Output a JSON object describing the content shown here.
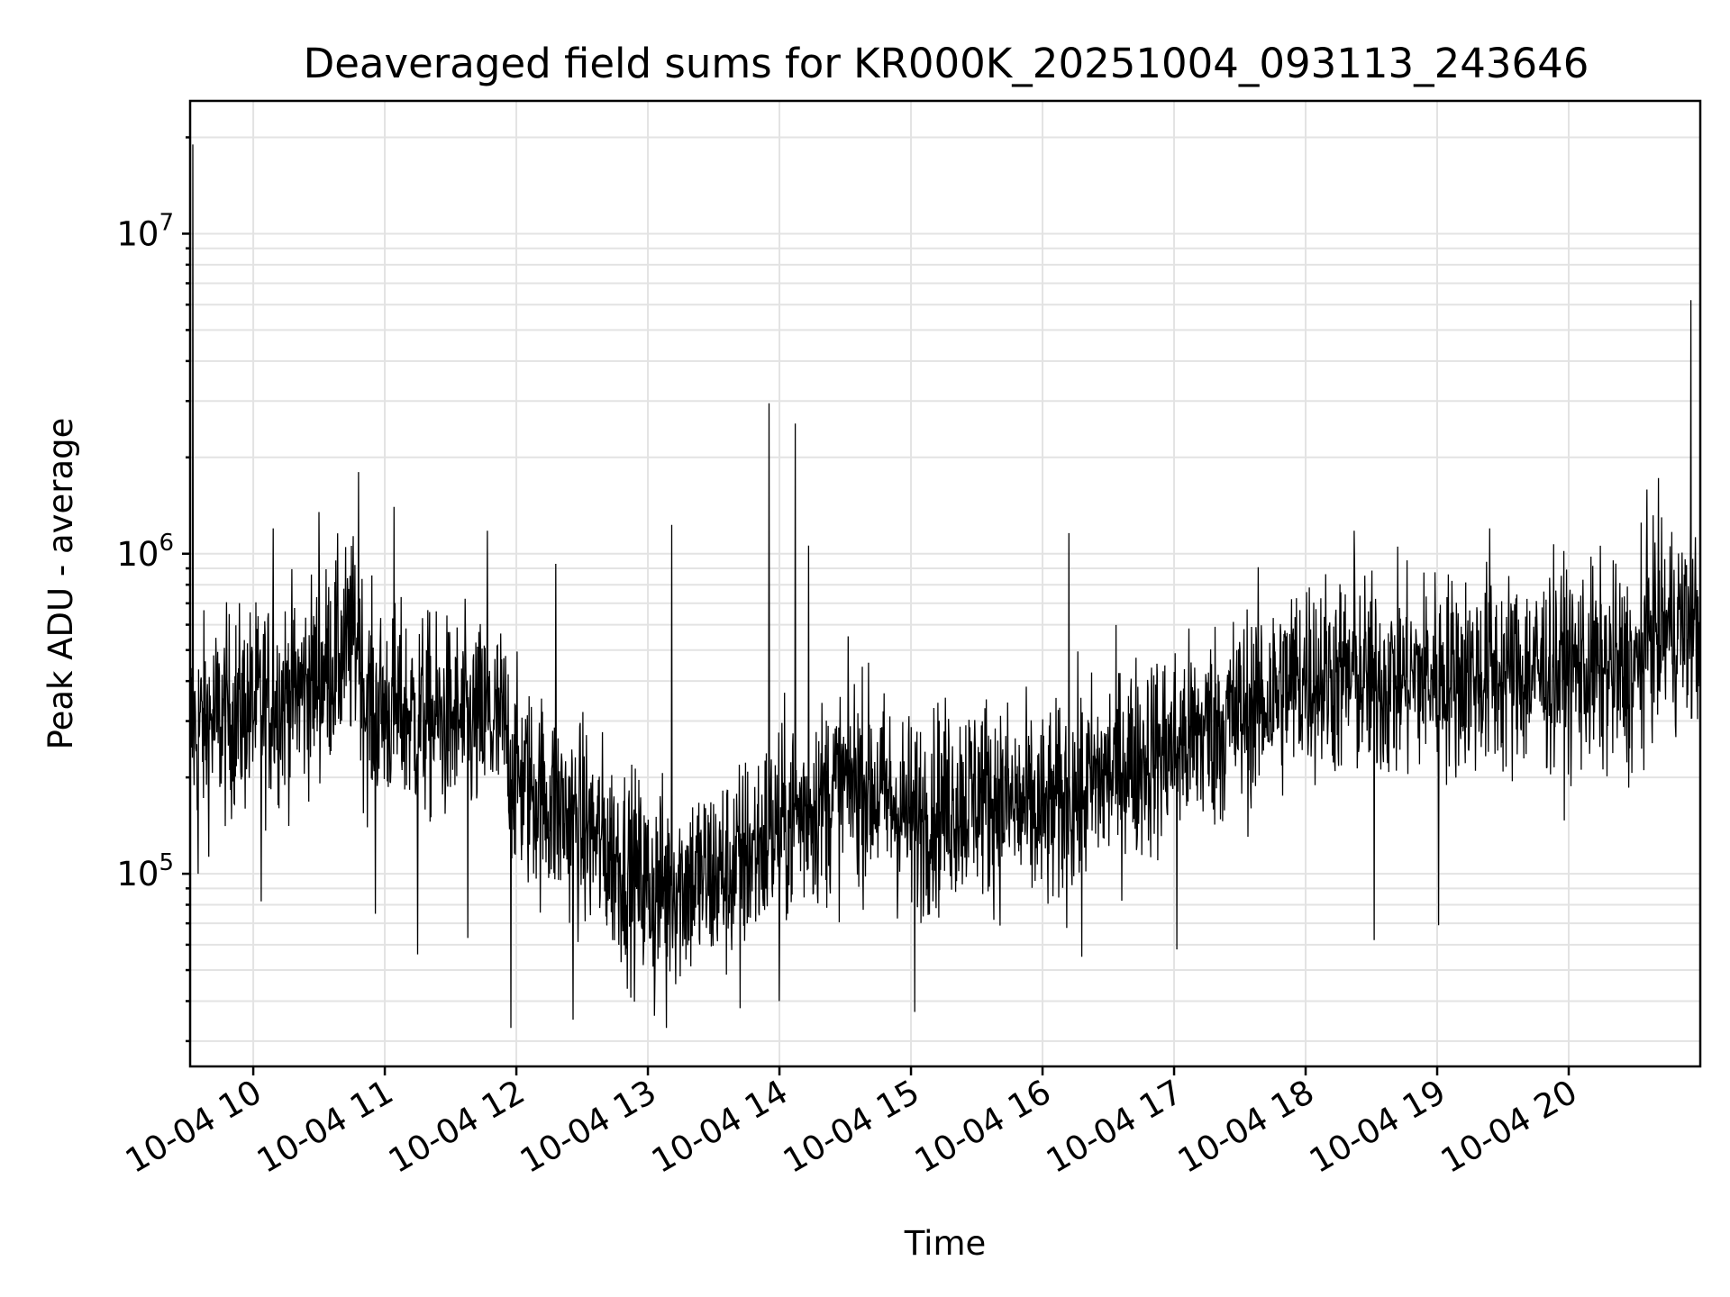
{
  "chart_data": {
    "type": "line",
    "title": "Deaveraged field sums for KR000K_20251004_093113_243646",
    "xlabel": "Time",
    "ylabel": "Peak ADU - average",
    "yscale": "log",
    "ylim": [
      25000,
      26000000
    ],
    "xlim_hours": [
      9.52,
      21.0
    ],
    "grid": true,
    "x_ticks": [
      {
        "hour": 10,
        "label": "10-04 10"
      },
      {
        "hour": 11,
        "label": "10-04 11"
      },
      {
        "hour": 12,
        "label": "10-04 12"
      },
      {
        "hour": 13,
        "label": "10-04 13"
      },
      {
        "hour": 14,
        "label": "10-04 14"
      },
      {
        "hour": 15,
        "label": "10-04 15"
      },
      {
        "hour": 16,
        "label": "10-04 16"
      },
      {
        "hour": 17,
        "label": "10-04 17"
      },
      {
        "hour": 18,
        "label": "10-04 18"
      },
      {
        "hour": 19,
        "label": "10-04 19"
      },
      {
        "hour": 20,
        "label": "10-04 20"
      }
    ],
    "y_ticks": [
      {
        "value": 100000,
        "base": "10",
        "exp": "5"
      },
      {
        "value": 1000000,
        "base": "10",
        "exp": "6"
      },
      {
        "value": 10000000,
        "base": "10",
        "exp": "7"
      }
    ],
    "series": [
      {
        "name": "deaveraged field sum",
        "color": "#000000",
        "baseline": [
          [
            9.52,
            280000
          ],
          [
            10.0,
            330000
          ],
          [
            10.4,
            380000
          ],
          [
            10.8,
            550000
          ],
          [
            10.85,
            340000
          ],
          [
            11.4,
            300000
          ],
          [
            11.9,
            290000
          ],
          [
            12.0,
            200000
          ],
          [
            12.6,
            130000
          ],
          [
            13.0,
            90000
          ],
          [
            13.6,
            100000
          ],
          [
            14.0,
            140000
          ],
          [
            14.6,
            200000
          ],
          [
            15.0,
            150000
          ],
          [
            15.5,
            180000
          ],
          [
            16.0,
            150000
          ],
          [
            16.6,
            220000
          ],
          [
            17.0,
            250000
          ],
          [
            17.6,
            330000
          ],
          [
            18.0,
            420000
          ],
          [
            18.6,
            400000
          ],
          [
            19.0,
            420000
          ],
          [
            19.6,
            420000
          ],
          [
            20.0,
            440000
          ],
          [
            20.55,
            420000
          ],
          [
            20.6,
            580000
          ],
          [
            21.0,
            600000
          ]
        ],
        "spikes": [
          [
            9.54,
            19000000
          ],
          [
            10.15,
            1200000
          ],
          [
            10.5,
            1350000
          ],
          [
            10.8,
            1800000
          ],
          [
            11.07,
            1400000
          ],
          [
            11.78,
            1180000
          ],
          [
            12.3,
            930000
          ],
          [
            13.18,
            1230000
          ],
          [
            13.92,
            2950000
          ],
          [
            14.12,
            2550000
          ],
          [
            14.22,
            1060000
          ],
          [
            16.2,
            1160000
          ],
          [
            18.37,
            1180000
          ],
          [
            19.4,
            1200000
          ],
          [
            20.55,
            1250000
          ],
          [
            20.93,
            6200000
          ]
        ],
        "dips": [
          [
            9.58,
            100000
          ],
          [
            10.06,
            82000
          ],
          [
            10.93,
            75000
          ],
          [
            11.25,
            56000
          ],
          [
            11.63,
            63000
          ],
          [
            11.96,
            33000
          ],
          [
            12.43,
            35000
          ],
          [
            13.05,
            36000
          ],
          [
            13.14,
            33000
          ],
          [
            13.7,
            38000
          ],
          [
            14.0,
            40000
          ],
          [
            15.03,
            37000
          ],
          [
            16.3,
            55000
          ],
          [
            17.02,
            58000
          ],
          [
            18.52,
            62000
          ],
          [
            19.01,
            69000
          ]
        ]
      }
    ]
  }
}
